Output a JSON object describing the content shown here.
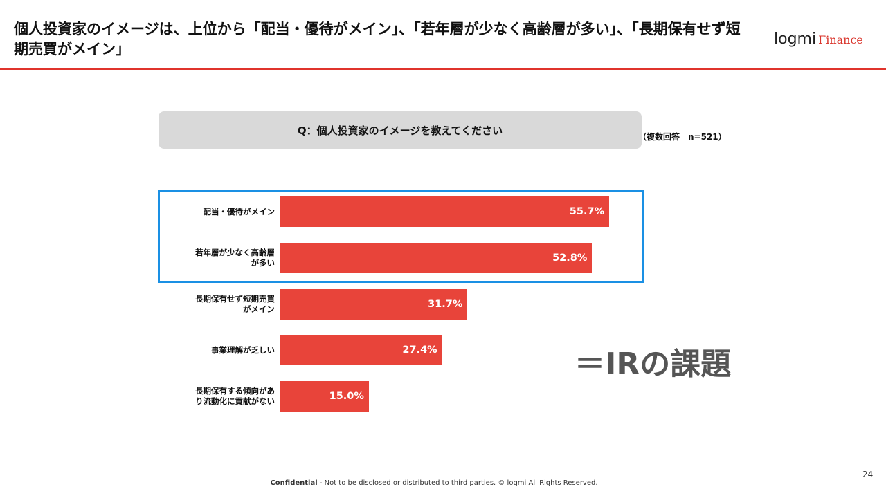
{
  "header": {
    "title": "個人投資家のイメージは、上位から「配当・優待がメイン」、「若年層が少なく高齢層が多い」、「長期保有せず短期売買がメイン」",
    "logo": "logmi",
    "logo_sub": "Finance"
  },
  "chart_data": {
    "type": "bar",
    "orientation": "horizontal",
    "question": "Q：個人投資家のイメージを教えてください",
    "note": "（複数回答　n=521）",
    "categories": [
      "配当・優待がメイン",
      "若年層が少なく高齢層が多い",
      "長期保有せず短期売買がメイン",
      "事業理解が乏しい",
      "長期保有する傾向があり流動化に貢献がない"
    ],
    "values": [
      55.7,
      52.8,
      31.7,
      27.4,
      15.0
    ],
    "value_labels": [
      "55.7%",
      "52.8%",
      "31.7%",
      "27.4%",
      "15.0%"
    ],
    "color": "#e8443a",
    "annotation": "＝IRの課題"
  },
  "footer": {
    "confidential": "Confidential",
    "text": " - Not to be disclosed or distributed to third parties.  © logmi All Rights Reserved.",
    "page": "24"
  }
}
